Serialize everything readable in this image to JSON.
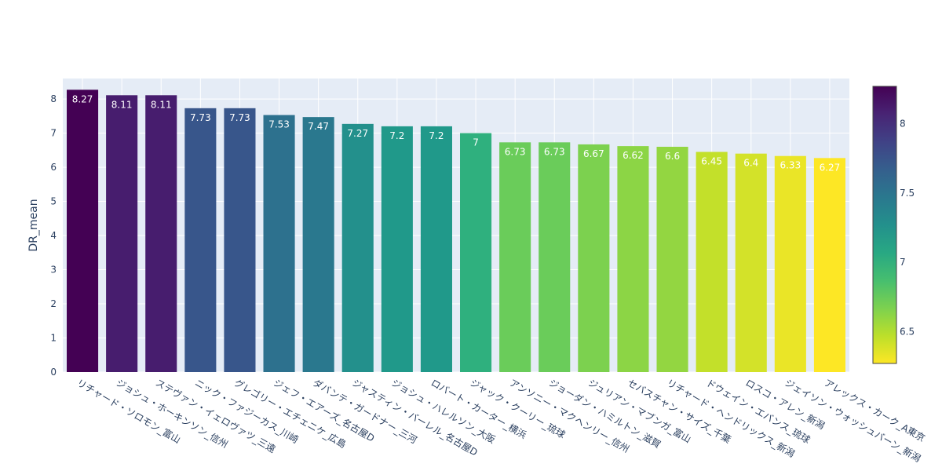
{
  "chart_data": {
    "type": "bar",
    "ylabel": "DR_mean",
    "xlabel": "",
    "ylim": [
      0,
      8.6
    ],
    "yticks": [
      0,
      1,
      2,
      3,
      4,
      5,
      6,
      7,
      8
    ],
    "categories": [
      "リチャード・ソロモン_富山",
      "ジョシュ・ホーキンソン_信州",
      "ステヴァン・イェロヴァツ_三遠",
      "ニック・ファジーカス_川崎",
      "グレゴリー・エチェニケ_広島",
      "ジェフ・エアーズ_名古屋D",
      "ダバンテ・ガードナー_三河",
      "ジャスティン・バーレル_名古屋D",
      "ジョシュ・ハレルソン_大阪",
      "ロバート・カーター_横浜",
      "ジャック・クーリー_琉球",
      "アンソニー・マクヘンリー_信州",
      "ジョーダン・ハミルトン_滋賀",
      "ジュリアン・マブンガ_富山",
      "セバスチャン・サイズ_千葉",
      "リチャード・ヘンドリックス_新潟",
      "ドウェイン・エバンス_琉球",
      "ロスコ・アレン_新潟",
      "ジェイソン・ウォッシュバーン_新潟",
      "アレックス・カーク_A東京"
    ],
    "values": [
      8.27,
      8.11,
      8.11,
      7.73,
      7.73,
      7.53,
      7.47,
      7.27,
      7.2,
      7.2,
      7,
      6.73,
      6.73,
      6.67,
      6.62,
      6.6,
      6.45,
      6.4,
      6.33,
      6.27
    ],
    "bar_labels": [
      "8.27",
      "8.11",
      "8.11",
      "7.73",
      "7.73",
      "7.53",
      "7.47",
      "7.27",
      "7.2",
      "7.2",
      "7",
      "6.73",
      "6.73",
      "6.67",
      "6.62",
      "6.6",
      "6.45",
      "6.4",
      "6.33",
      "6.27"
    ],
    "colorscale": "Viridis",
    "colorbar": {
      "min": 6.27,
      "max": 8.27,
      "ticks": [
        6.5,
        7,
        7.5,
        8
      ]
    }
  },
  "colors": {
    "plot_bg": "#E5ECF6",
    "grid": "#ffffff",
    "text": "#2a3f5f",
    "viridis": [
      "#440154",
      "#482878",
      "#3e4989",
      "#31688e",
      "#26828e",
      "#1f9e89",
      "#35b779",
      "#6ece58",
      "#b5de2b",
      "#fde725"
    ]
  }
}
